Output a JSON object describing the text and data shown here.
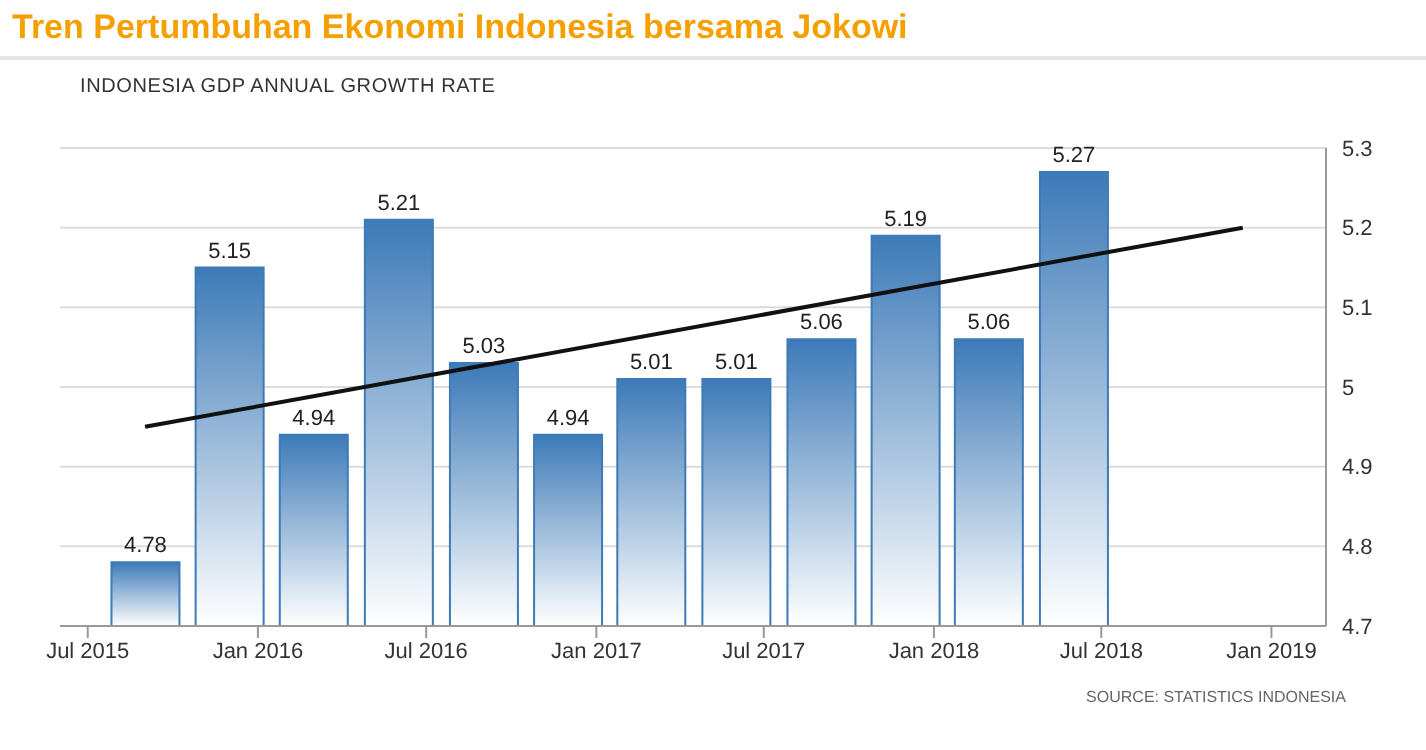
{
  "chart_data": {
    "type": "bar",
    "title": "Tren Pertumbuhan Ekonomi Indonesia bersama Jokowi",
    "subtitle": "INDONESIA GDP ANNUAL GROWTH RATE",
    "annotations": [
      "SOURCE: STATISTICS INDONESIA"
    ],
    "x": [
      "2015-09",
      "2015-12",
      "2016-03",
      "2016-06",
      "2016-09",
      "2016-12",
      "2017-03",
      "2017-06",
      "2017-09",
      "2017-12",
      "2018-03",
      "2018-06"
    ],
    "series": [
      {
        "color": "#3d7ab8",
        "values": [
          4.78,
          5.15,
          4.94,
          5.21,
          5.03,
          4.94,
          5.01,
          5.01,
          5.06,
          5.19,
          5.06,
          5.27
        ],
        "value_labels": [
          "4.78",
          "5.15",
          "4.94",
          "5.21",
          "5.03",
          "4.94",
          "5.01",
          "5.01",
          "5.06",
          "5.19",
          "5.06",
          "5.27"
        ]
      },
      {
        "type": "line",
        "color": "#111111",
        "x": [
          "2015-09",
          "2018-12"
        ],
        "values": [
          4.95,
          5.2
        ]
      }
    ],
    "xlim": [
      "2015-06",
      "2019-03"
    ],
    "xticks": [
      {
        "value": "2015-07",
        "label": "Jul 2015"
      },
      {
        "value": "2016-01",
        "label": "Jan 2016"
      },
      {
        "value": "2016-07",
        "label": "Jul 2016"
      },
      {
        "value": "2017-01",
        "label": "Jan 2017"
      },
      {
        "value": "2017-07",
        "label": "Jul 2017"
      },
      {
        "value": "2018-01",
        "label": "Jan 2018"
      },
      {
        "value": "2018-07",
        "label": "Jul 2018"
      },
      {
        "value": "2019-01",
        "label": "Jan 2019"
      }
    ],
    "ylim": [
      4.7,
      5.3
    ],
    "yticks": [
      4.7,
      4.8,
      4.9,
      5,
      5.1,
      5.2,
      5.3
    ],
    "grid": "y",
    "marker": "none",
    "line_style": "solid"
  }
}
